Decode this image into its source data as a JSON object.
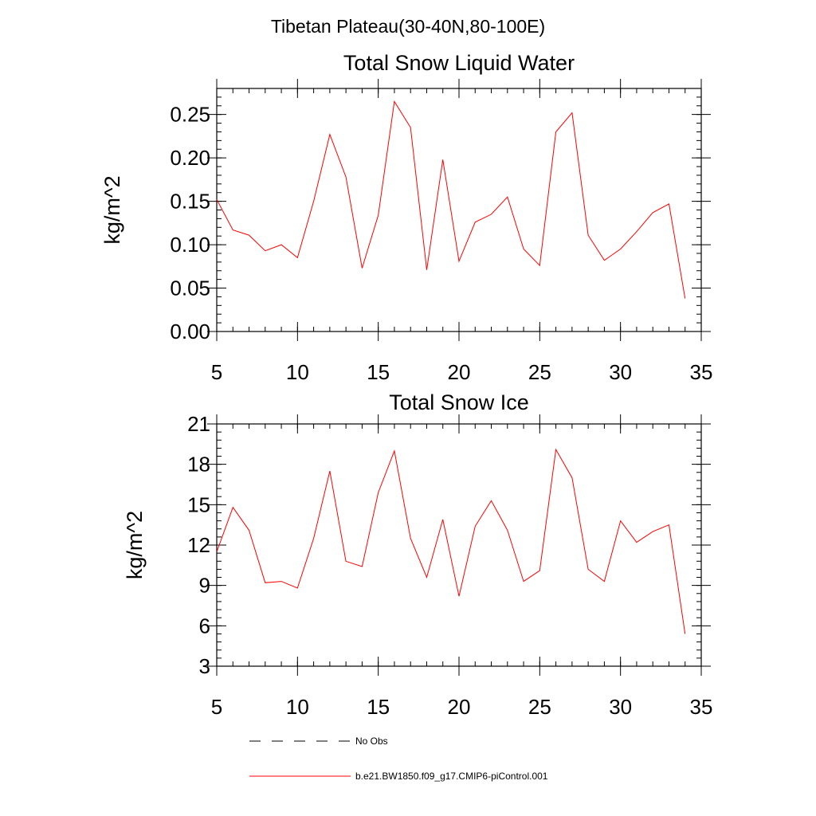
{
  "page_title": "Tibetan Plateau(30-40N,80-100E)",
  "legend": [
    {
      "label": "No Obs",
      "color": "#000000",
      "style": "dashed"
    },
    {
      "label": "b.e21.BW1850.f09_g17.CMIP6-piControl.001",
      "color": "#ff0000",
      "style": "solid"
    }
  ],
  "chart_data": [
    {
      "type": "line",
      "title": "Total Snow Liquid Water",
      "xlabel": "",
      "ylabel": "kg/m^2",
      "xlim": [
        5,
        35
      ],
      "ylim": [
        0,
        0.28
      ],
      "x_ticks": [
        5,
        10,
        15,
        20,
        25,
        30,
        35
      ],
      "y_ticks": [
        0.0,
        0.05,
        0.1,
        0.15,
        0.2,
        0.25
      ],
      "y_tick_labels": [
        "0.00",
        "0.05",
        "0.10",
        "0.15",
        "0.20",
        "0.25"
      ],
      "x_minor_step": 1,
      "y_minor_step": 0.01,
      "series": [
        {
          "name": "b.e21.BW1850.f09_g17.CMIP6-piControl.001",
          "color": "#ff0000",
          "x": [
            5,
            6,
            7,
            8,
            9,
            10,
            11,
            12,
            13,
            14,
            15,
            16,
            17,
            18,
            19,
            20,
            21,
            22,
            23,
            24,
            25,
            26,
            27,
            28,
            29,
            30,
            31,
            32,
            33,
            34
          ],
          "values": [
            0.152,
            0.117,
            0.111,
            0.093,
            0.1,
            0.085,
            0.15,
            0.227,
            0.178,
            0.073,
            0.134,
            0.265,
            0.235,
            0.071,
            0.198,
            0.081,
            0.126,
            0.135,
            0.155,
            0.095,
            0.076,
            0.23,
            0.252,
            0.111,
            0.082,
            0.095,
            0.115,
            0.137,
            0.147,
            0.038
          ]
        }
      ]
    },
    {
      "type": "line",
      "title": "Total Snow Ice",
      "xlabel": "",
      "ylabel": "kg/m^2",
      "xlim": [
        5,
        35
      ],
      "ylim": [
        3,
        21
      ],
      "x_ticks": [
        5,
        10,
        15,
        20,
        25,
        30,
        35
      ],
      "y_ticks": [
        3,
        6,
        9,
        12,
        15,
        18,
        21
      ],
      "y_tick_labels": [
        "3",
        "6",
        "9",
        "12",
        "15",
        "18",
        "21"
      ],
      "x_minor_step": 1,
      "y_minor_step": 0.6,
      "series": [
        {
          "name": "b.e21.BW1850.f09_g17.CMIP6-piControl.001",
          "color": "#ff0000",
          "x": [
            5,
            6,
            7,
            8,
            9,
            10,
            11,
            12,
            13,
            14,
            15,
            16,
            17,
            18,
            19,
            20,
            21,
            22,
            23,
            24,
            25,
            26,
            27,
            28,
            29,
            30,
            31,
            32,
            33,
            34
          ],
          "values": [
            11.5,
            14.8,
            13.1,
            9.2,
            9.3,
            8.8,
            12.5,
            17.5,
            10.8,
            10.4,
            15.9,
            19.0,
            12.5,
            9.6,
            13.9,
            8.2,
            13.4,
            15.3,
            13.1,
            9.3,
            10.1,
            19.1,
            17.0,
            10.2,
            9.3,
            13.8,
            12.2,
            13.0,
            13.5,
            5.4
          ]
        }
      ]
    }
  ]
}
